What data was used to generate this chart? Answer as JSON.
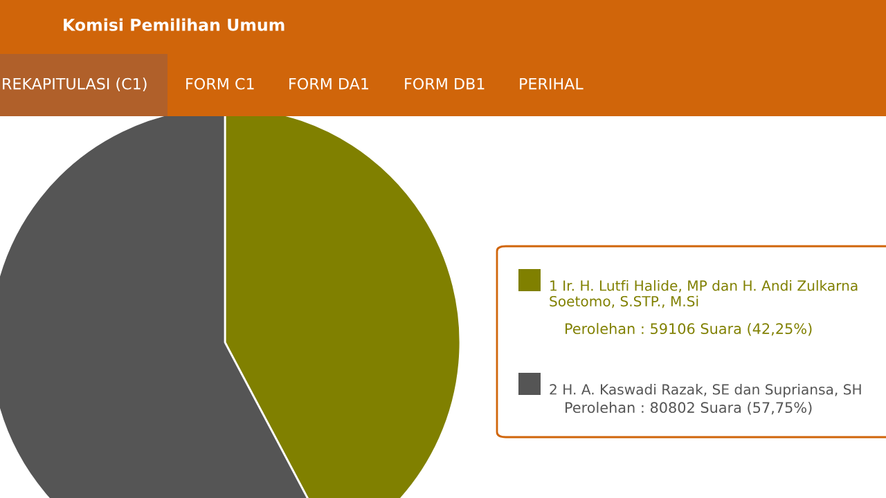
{
  "chart_data": {
    "type": "pie",
    "title": "Komisi Pemilihan Umum",
    "annotations": [
      "REKAPITULASI (C1)",
      "FORM C1",
      "FORM DA1",
      "FORM DB1",
      "PERIHAL"
    ],
    "categories": [
      "1 Ir. H. Lutfi Halide, MP dan H. Andi Zulkarna Soetomo, S.STP., M.Si",
      "2 H. A. Kaswadi Razak, SE dan Supriansa, SH"
    ],
    "values": [
      59106,
      80802
    ],
    "colors": [
      "#808000",
      "#555555"
    ],
    "value_labels": [
      "Perolehan : 59106 Suara (42,25%)",
      "Perolehan : 80802 Suara (57,75%)"
    ],
    "legend": "right"
  }
}
